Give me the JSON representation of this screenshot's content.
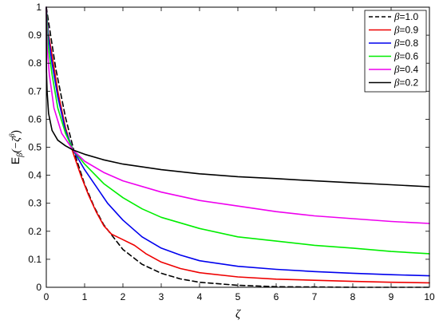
{
  "chart_data": {
    "type": "line",
    "xlabel": "ζ",
    "ylabel_main": "E",
    "ylabel_sub": "β",
    "ylabel_paren_open": "(−ζ",
    "ylabel_sup": "β",
    "ylabel_paren_close": ")",
    "xlim": [
      0,
      10
    ],
    "ylim": [
      0,
      1
    ],
    "x_ticks": [
      "0",
      "1",
      "2",
      "3",
      "4",
      "5",
      "6",
      "7",
      "8",
      "9",
      "10"
    ],
    "y_ticks": [
      "0",
      "0.1",
      "0.2",
      "0.3",
      "0.4",
      "0.5",
      "0.6",
      "0.7",
      "0.8",
      "0.9",
      "1"
    ],
    "grid": false,
    "legend_position": "top-right",
    "series": [
      {
        "name": "β=1.0",
        "legend_greek": "β",
        "legend_value": "=1.0",
        "color": "#000000",
        "dash": true,
        "x": [
          0,
          0.25,
          0.5,
          0.75,
          1.0,
          1.25,
          1.5,
          2.0,
          2.5,
          3.0,
          3.5,
          4.0,
          5.0,
          6.0,
          7.0,
          8.0,
          10.0
        ],
        "y": [
          1.0,
          0.779,
          0.607,
          0.472,
          0.368,
          0.287,
          0.223,
          0.135,
          0.082,
          0.05,
          0.03,
          0.018,
          0.007,
          0.002,
          0.001,
          0.0,
          0.0
        ]
      },
      {
        "name": "β=0.9",
        "legend_greek": "β",
        "legend_value": "=0.9",
        "color": "#ee0000",
        "dash": false,
        "x": [
          0,
          0.05,
          0.15,
          0.3,
          0.5,
          0.7,
          0.9,
          1.1,
          1.3,
          1.5,
          1.7,
          2.0,
          2.3,
          2.6,
          3.0,
          3.5,
          4.0,
          5.0,
          6.0,
          7.0,
          8.0,
          9.0,
          10.0
        ],
        "y": [
          1.0,
          0.91,
          0.83,
          0.7,
          0.57,
          0.48,
          0.4,
          0.33,
          0.27,
          0.22,
          0.19,
          0.17,
          0.15,
          0.12,
          0.09,
          0.067,
          0.052,
          0.037,
          0.029,
          0.025,
          0.021,
          0.018,
          0.016
        ]
      },
      {
        "name": "β=0.8",
        "legend_greek": "β",
        "legend_value": "=0.8",
        "color": "#0000ee",
        "dash": false,
        "x": [
          0,
          0.05,
          0.15,
          0.3,
          0.5,
          0.7,
          1.0,
          1.3,
          1.6,
          2.0,
          2.5,
          3.0,
          3.5,
          4.0,
          5.0,
          6.0,
          7.0,
          8.0,
          9.0,
          10.0
        ],
        "y": [
          1.0,
          0.9,
          0.8,
          0.68,
          0.56,
          0.49,
          0.42,
          0.36,
          0.3,
          0.24,
          0.18,
          0.14,
          0.115,
          0.095,
          0.075,
          0.064,
          0.056,
          0.05,
          0.045,
          0.041
        ]
      },
      {
        "name": "β=0.6",
        "legend_greek": "β",
        "legend_value": "=0.6",
        "color": "#00ee00",
        "dash": false,
        "x": [
          0,
          0.05,
          0.15,
          0.3,
          0.5,
          0.7,
          1.0,
          1.5,
          2.0,
          2.5,
          3.0,
          4.0,
          5.0,
          6.0,
          7.0,
          8.0,
          9.0,
          10.0
        ],
        "y": [
          1.0,
          0.86,
          0.76,
          0.64,
          0.55,
          0.49,
          0.44,
          0.37,
          0.32,
          0.28,
          0.25,
          0.21,
          0.18,
          0.165,
          0.15,
          0.14,
          0.128,
          0.12
        ]
      },
      {
        "name": "β=0.4",
        "legend_greek": "β",
        "legend_value": "=0.4",
        "color": "#ee00ee",
        "dash": false,
        "x": [
          0,
          0.02,
          0.08,
          0.2,
          0.4,
          0.7,
          1.0,
          1.5,
          2.0,
          3.0,
          4.0,
          5.0,
          6.0,
          7.0,
          8.0,
          9.0,
          10.0
        ],
        "y": [
          1.0,
          0.86,
          0.76,
          0.64,
          0.55,
          0.49,
          0.45,
          0.41,
          0.38,
          0.34,
          0.31,
          0.29,
          0.27,
          0.255,
          0.245,
          0.235,
          0.228
        ]
      },
      {
        "name": "β=0.2",
        "legend_greek": "β",
        "legend_value": "=0.2",
        "color": "#000000",
        "dash": false,
        "x": [
          0,
          0.005,
          0.02,
          0.06,
          0.15,
          0.3,
          0.5,
          0.7,
          1.0,
          1.5,
          2.0,
          3.0,
          4.0,
          5.0,
          6.0,
          7.0,
          8.0,
          9.0,
          10.0
        ],
        "y": [
          1.0,
          0.77,
          0.7,
          0.62,
          0.56,
          0.525,
          0.505,
          0.49,
          0.475,
          0.455,
          0.44,
          0.42,
          0.405,
          0.395,
          0.388,
          0.38,
          0.373,
          0.366,
          0.359
        ]
      }
    ]
  }
}
